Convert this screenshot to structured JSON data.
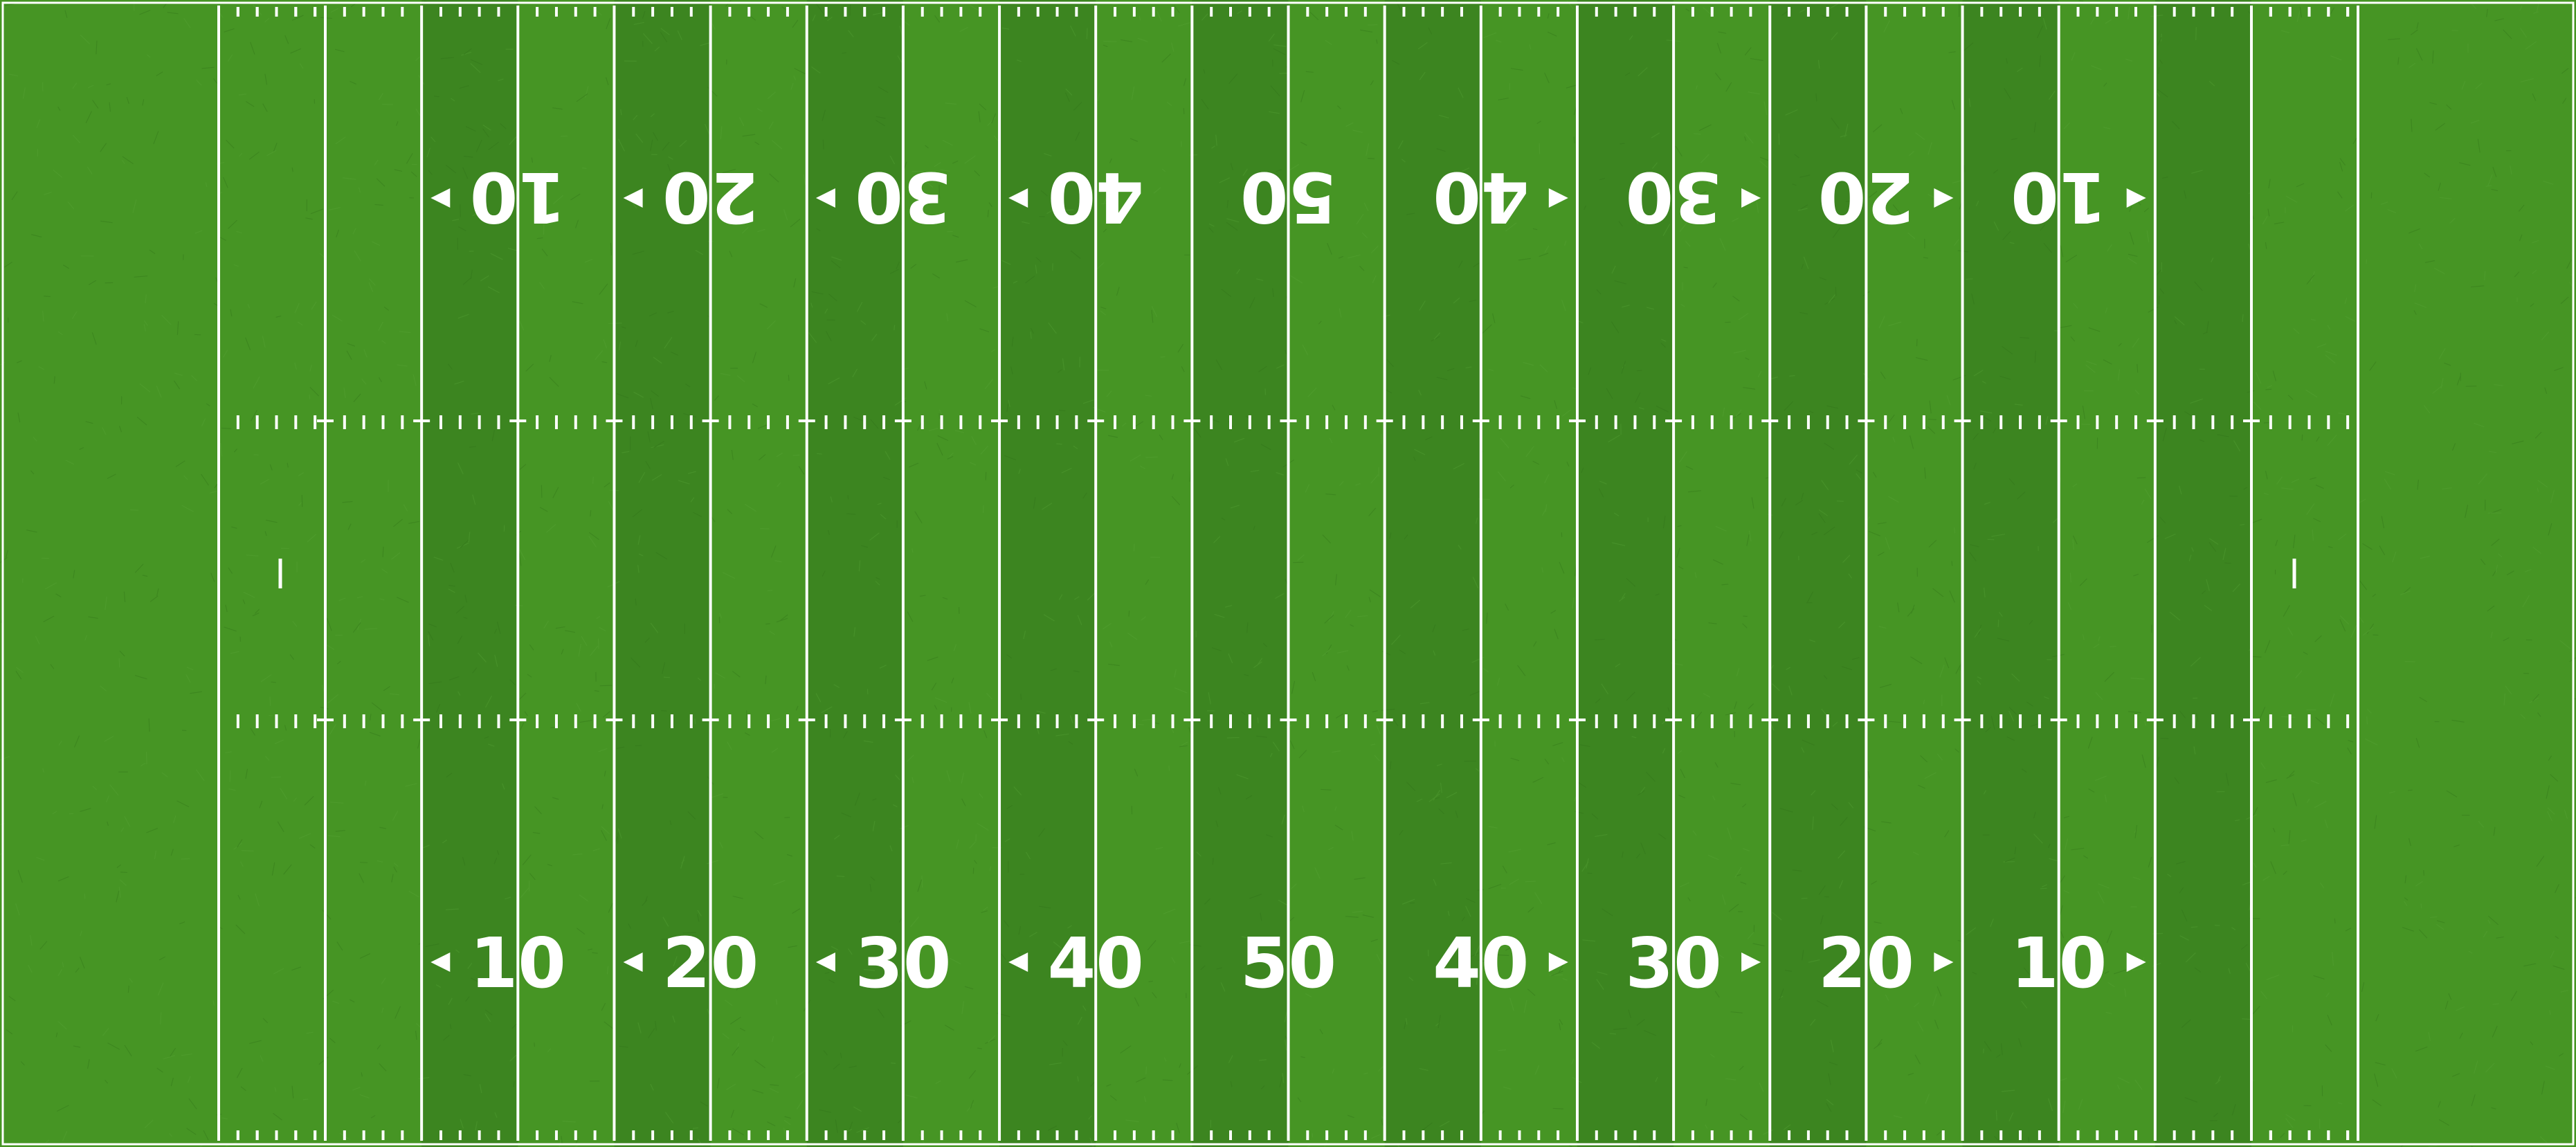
{
  "field": {
    "turf_color_light": "#469524",
    "turf_color_dark": "#3c8520",
    "line_color": "#ffffff",
    "yard_labels_bottom": [
      "10",
      "20",
      "30",
      "40",
      "50",
      "40",
      "30",
      "20",
      "10"
    ],
    "yard_labels_top": [
      "10",
      "20",
      "30",
      "40",
      "50",
      "40",
      "30",
      "20",
      "10"
    ],
    "arrow_directions": [
      "left",
      "left",
      "left",
      "left",
      "none",
      "right",
      "right",
      "right",
      "right"
    ]
  }
}
